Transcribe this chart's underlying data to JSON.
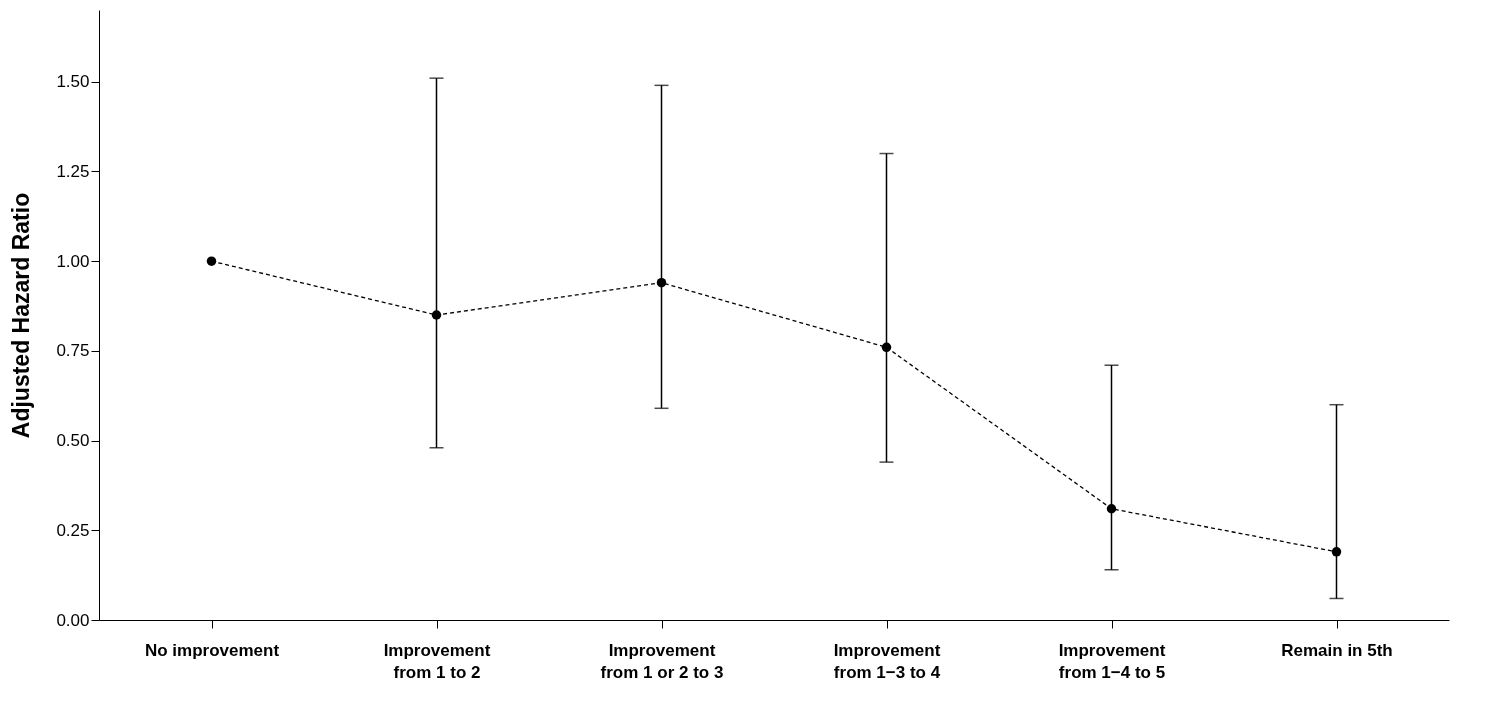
{
  "chart_data": {
    "type": "line",
    "ylabel": "Adjusted Hazard Ratio",
    "categories": [
      "No improvement",
      "Improvement\nfrom 1 to 2",
      "Improvement\nfrom 1 or 2 to 3",
      "Improvement\nfrom 1−3 to 4",
      "Improvement\nfrom 1−4 to 5",
      "Remain in 5th"
    ],
    "series": [
      {
        "color": "#000000",
        "values": [
          1.0,
          0.85,
          0.94,
          0.76,
          0.31,
          0.19
        ],
        "errors": [
          null,
          [
            0.48,
            1.51
          ],
          [
            0.59,
            1.49
          ],
          [
            0.44,
            1.3
          ],
          [
            0.14,
            0.71
          ],
          [
            0.06,
            0.6
          ]
        ]
      }
    ],
    "ylim": [
      0,
      1.7
    ],
    "yticks": [
      {
        "value": 0,
        "label": "0.00"
      },
      {
        "value": 0.25,
        "label": "0.25"
      },
      {
        "value": 0.5,
        "label": "0.50"
      },
      {
        "value": 0.75,
        "label": "0.75"
      },
      {
        "value": 1,
        "label": "1.00"
      },
      {
        "value": 1.25,
        "label": "1.25"
      },
      {
        "value": 1.5,
        "label": "1.50"
      }
    ],
    "grid": false,
    "marker": "circle",
    "line_style": "dashed"
  }
}
